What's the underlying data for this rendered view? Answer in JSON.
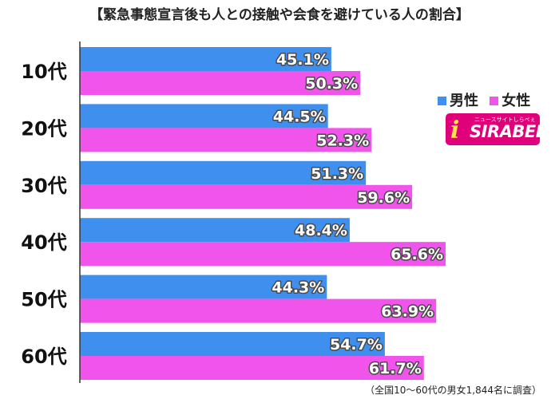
{
  "colors": {
    "male": "#3f8fef",
    "female": "#f154ea",
    "axis": "#333333"
  },
  "legend": {
    "male": "男性",
    "female": "女性"
  },
  "logo": {
    "brand": "SIRABEE",
    "tagline": "ニュースサイトしらべぇ",
    "icon": "i-icon"
  },
  "footnote": "（全国10～60代の男女1,844名に調査）",
  "chart_data": {
    "type": "bar",
    "orientation": "horizontal",
    "title": "【緊急事態宣言後も人との接触や会食を避けている人の割合】",
    "categories": [
      "10代",
      "20代",
      "30代",
      "40代",
      "50代",
      "60代"
    ],
    "value_labels": {
      "male": [
        "45.1%",
        "44.5%",
        "51.3%",
        "48.4%",
        "44.3%",
        "54.7%"
      ],
      "female": [
        "50.3%",
        "52.3%",
        "59.6%",
        "65.6%",
        "63.9%",
        "61.7%"
      ]
    },
    "series": [
      {
        "name": "男性",
        "values": [
          45.1,
          44.5,
          51.3,
          48.4,
          44.3,
          54.7
        ]
      },
      {
        "name": "女性",
        "values": [
          50.3,
          52.3,
          59.6,
          65.6,
          63.9,
          61.7
        ]
      }
    ],
    "xlim": [
      0,
      83.5
    ],
    "grid": false,
    "legend_position": "right"
  }
}
